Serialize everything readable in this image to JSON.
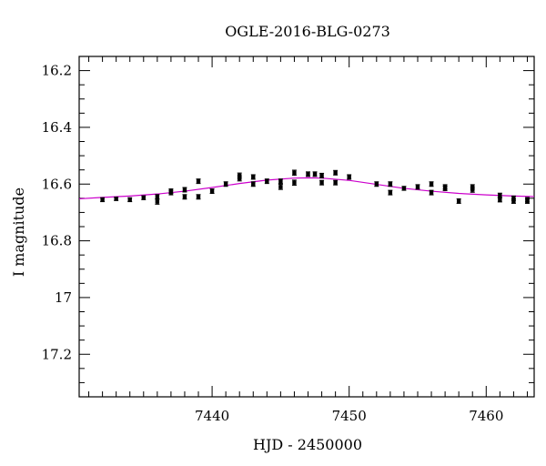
{
  "chart_data": {
    "type": "scatter",
    "title": "OGLE-2016-BLG-0273",
    "xlabel": "HJD - 2450000",
    "ylabel": "I magnitude",
    "xlim": [
      7430.3,
      7463.5
    ],
    "ylim": [
      17.35,
      16.15
    ],
    "y_inverted": true,
    "x_ticks": [
      7440,
      7450,
      7460
    ],
    "x_tick_labels": [
      "7440",
      "7450",
      "7460"
    ],
    "y_ticks": [
      16.2,
      16.4,
      16.6,
      16.8,
      17,
      17.2
    ],
    "y_tick_labels": [
      "16.2",
      "16.4",
      "16.6",
      "16.8",
      "17",
      "17.2"
    ],
    "grid": false,
    "legend": "none",
    "colors": {
      "points": "#000000",
      "model": "#cc00cc",
      "axes": "#000000"
    },
    "model": {
      "name": "",
      "x": [
        7430.3,
        7432,
        7434,
        7436,
        7438,
        7440,
        7442,
        7444,
        7446,
        7447,
        7448,
        7450,
        7452,
        7454,
        7456,
        7458,
        7460,
        7462,
        7463.5
      ],
      "y": [
        16.652,
        16.647,
        16.642,
        16.635,
        16.625,
        16.612,
        16.598,
        16.586,
        16.579,
        16.578,
        16.579,
        16.587,
        16.601,
        16.615,
        16.625,
        16.633,
        16.638,
        16.642,
        16.644
      ]
    },
    "series": [
      {
        "name": "",
        "x": [
          7432,
          7433,
          7434,
          7435,
          7436,
          7436,
          7437,
          7437,
          7438,
          7438,
          7439,
          7439,
          7440,
          7441,
          7442,
          7442,
          7443,
          7443,
          7444,
          7445,
          7445,
          7446,
          7446,
          7447,
          7447.5,
          7448,
          7448,
          7449,
          7449,
          7450,
          7452,
          7453,
          7453,
          7454,
          7455,
          7456,
          7456,
          7457,
          7457,
          7458,
          7459,
          7459,
          7461,
          7461,
          7462,
          7462,
          7463,
          7463
        ],
        "y": [
          16.655,
          16.652,
          16.655,
          16.648,
          16.645,
          16.662,
          16.63,
          16.625,
          16.645,
          16.62,
          16.59,
          16.645,
          16.625,
          16.6,
          16.57,
          16.58,
          16.575,
          16.6,
          16.59,
          16.59,
          16.61,
          16.56,
          16.595,
          16.565,
          16.565,
          16.57,
          16.595,
          16.56,
          16.595,
          16.575,
          16.6,
          16.6,
          16.63,
          16.615,
          16.61,
          16.6,
          16.63,
          16.615,
          16.61,
          16.66,
          16.62,
          16.61,
          16.64,
          16.655,
          16.65,
          16.66,
          16.655,
          16.66
        ],
        "err": [
          0.007,
          0.006,
          0.007,
          0.007,
          0.008,
          0.009,
          0.008,
          0.008,
          0.008,
          0.008,
          0.008,
          0.008,
          0.008,
          0.008,
          0.009,
          0.009,
          0.008,
          0.008,
          0.008,
          0.008,
          0.009,
          0.009,
          0.009,
          0.008,
          0.008,
          0.008,
          0.008,
          0.008,
          0.008,
          0.008,
          0.008,
          0.008,
          0.008,
          0.007,
          0.008,
          0.008,
          0.008,
          0.008,
          0.008,
          0.008,
          0.009,
          0.008,
          0.008,
          0.008,
          0.008,
          0.008,
          0.008,
          0.008
        ]
      }
    ]
  }
}
